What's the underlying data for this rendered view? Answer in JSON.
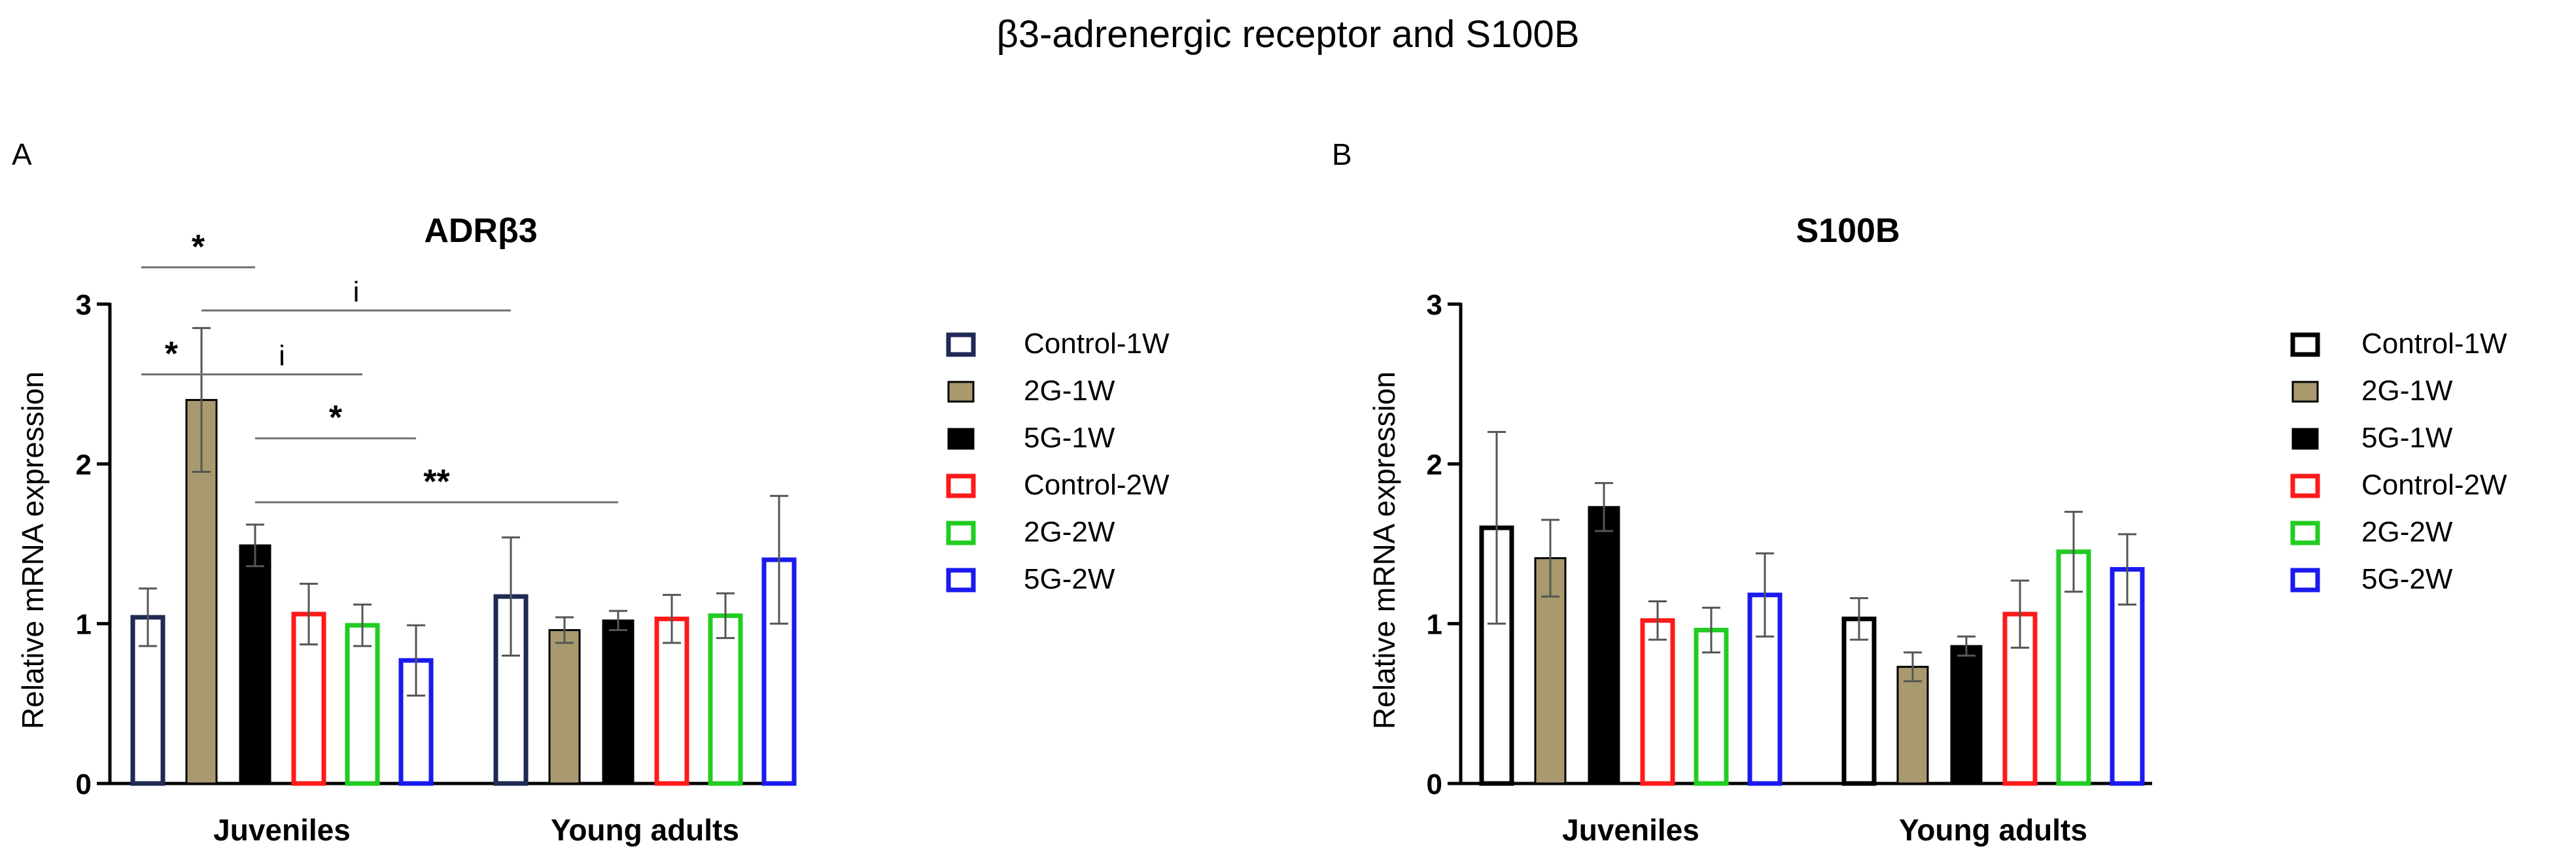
{
  "figure_title": "β3-adrenergic receptor and S100B",
  "colors": {
    "Control-1W": "#1f2a55",
    "2G-1W": "#a89a6e",
    "5G-1W": "#000000",
    "Control-2W": "#ff1a1a",
    "2G-2W": "#22cc22",
    "5G-2W": "#1a1aee",
    "axis": "#000000",
    "sig_line": "#707070",
    "errorbar": "#555555"
  },
  "chart_data": [
    {
      "panel_label": "A",
      "type": "bar",
      "title": "ADRβ3",
      "ylabel": "Relative mRNA expression",
      "xlabel": "",
      "ylim": [
        0,
        3
      ],
      "yticks": [
        0,
        1,
        2,
        3
      ],
      "categories": [
        "Juveniles",
        "Young adults"
      ],
      "legend_position": "right",
      "series": [
        {
          "name": "Control-1W",
          "color_key": "Control-1W",
          "filled": false,
          "values": [
            1.04,
            1.17
          ],
          "errors": [
            0.18,
            0.37
          ]
        },
        {
          "name": "2G-1W",
          "color_key": "2G-1W",
          "filled": true,
          "values": [
            2.4,
            0.96
          ],
          "errors": [
            0.45,
            0.08
          ]
        },
        {
          "name": "5G-1W",
          "color_key": "5G-1W",
          "filled": true,
          "values": [
            1.49,
            1.02
          ],
          "errors": [
            0.13,
            0.06
          ]
        },
        {
          "name": "Control-2W",
          "color_key": "Control-2W",
          "filled": false,
          "values": [
            1.06,
            1.03
          ],
          "errors": [
            0.19,
            0.15
          ]
        },
        {
          "name": "2G-2W",
          "color_key": "2G-2W",
          "filled": false,
          "values": [
            0.99,
            1.05
          ],
          "errors": [
            0.13,
            0.14
          ]
        },
        {
          "name": "5G-2W",
          "color_key": "5G-2W",
          "filled": false,
          "values": [
            0.77,
            1.4
          ],
          "errors": [
            0.22,
            0.4
          ]
        }
      ],
      "significance": [
        {
          "label": "*",
          "from": [
            0,
            0
          ],
          "to": [
            0,
            2
          ],
          "y": 3.23
        },
        {
          "label": "i",
          "from": [
            0,
            1
          ],
          "to": [
            1,
            0
          ],
          "y": 2.96
        },
        {
          "label": "*",
          "from": [
            0,
            0
          ],
          "to": [
            0,
            1
          ],
          "y": 2.56
        },
        {
          "label": "i",
          "from": [
            0,
            1
          ],
          "to": [
            0,
            4
          ],
          "y": 2.56
        },
        {
          "label": "*",
          "from": [
            0,
            2
          ],
          "to": [
            0,
            5
          ],
          "y": 2.16
        },
        {
          "label": "**",
          "from": [
            0,
            2
          ],
          "to": [
            1,
            2
          ],
          "y": 1.76
        }
      ]
    },
    {
      "panel_label": "B",
      "type": "bar",
      "title": "S100B",
      "ylabel": "Relative mRNA expression",
      "xlabel": "",
      "ylim": [
        0,
        3
      ],
      "yticks": [
        0,
        1,
        2,
        3
      ],
      "categories": [
        "Juveniles",
        "Young adults"
      ],
      "legend_position": "right",
      "series": [
        {
          "name": "Control-1W",
          "color_key": "5G-1W",
          "filled": false,
          "values": [
            1.6,
            1.03
          ],
          "errors": [
            0.6,
            0.13
          ]
        },
        {
          "name": "2G-1W",
          "color_key": "2G-1W",
          "filled": true,
          "values": [
            1.41,
            0.73
          ],
          "errors": [
            0.24,
            0.09
          ]
        },
        {
          "name": "5G-1W",
          "color_key": "5G-1W",
          "filled": true,
          "values": [
            1.73,
            0.86
          ],
          "errors": [
            0.15,
            0.06
          ]
        },
        {
          "name": "Control-2W",
          "color_key": "Control-2W",
          "filled": false,
          "values": [
            1.02,
            1.06
          ],
          "errors": [
            0.12,
            0.21
          ]
        },
        {
          "name": "2G-2W",
          "color_key": "2G-2W",
          "filled": false,
          "values": [
            0.96,
            1.45
          ],
          "errors": [
            0.14,
            0.25
          ]
        },
        {
          "name": "5G-2W",
          "color_key": "5G-2W",
          "filled": false,
          "values": [
            1.18,
            1.34
          ],
          "errors": [
            0.26,
            0.22
          ]
        }
      ],
      "significance": []
    }
  ]
}
